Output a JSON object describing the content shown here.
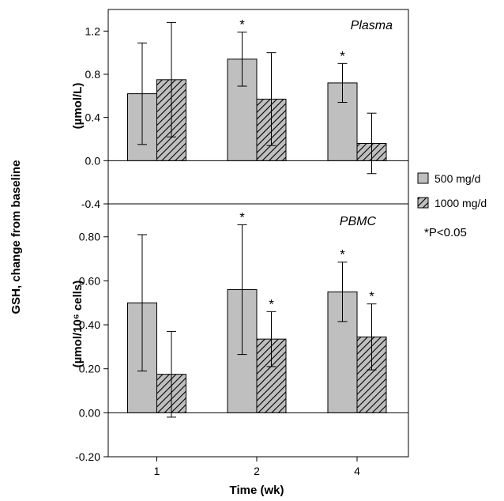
{
  "chart_data": [
    {
      "type": "bar",
      "title": "Plasma",
      "categories": [
        "1",
        "2",
        "4"
      ],
      "ylabel": "(µmol/L)",
      "ylim": [
        -0.4,
        1.4
      ],
      "yticks": [
        "-0.4",
        "0.0",
        "0.4",
        "0.8",
        "1.2"
      ],
      "series": [
        {
          "name": "500 mg/d",
          "values": [
            0.62,
            0.94,
            0.72
          ],
          "error": [
            0.47,
            0.25,
            0.18
          ],
          "significant": [
            false,
            true,
            true
          ]
        },
        {
          "name": "1000 mg/d",
          "values": [
            0.75,
            0.57,
            0.16
          ],
          "error": [
            0.53,
            0.43,
            0.28
          ],
          "significant": [
            false,
            false,
            false
          ]
        }
      ]
    },
    {
      "type": "bar",
      "title": "PBMC",
      "categories": [
        "1",
        "2",
        "4"
      ],
      "ylabel": "(µmol/10⁶ cells)",
      "ylim": [
        -0.2,
        0.95
      ],
      "yticks": [
        "-0.20",
        "0.00",
        "0.20",
        "0.40",
        "0.60",
        "0.80"
      ],
      "series": [
        {
          "name": "500 mg/d",
          "values": [
            0.5,
            0.56,
            0.55
          ],
          "error": [
            0.31,
            0.295,
            0.135
          ],
          "significant": [
            false,
            true,
            true
          ]
        },
        {
          "name": "1000 mg/d",
          "values": [
            0.175,
            0.335,
            0.345
          ],
          "error": [
            0.195,
            0.125,
            0.15
          ],
          "significant": [
            false,
            true,
            true
          ]
        }
      ]
    }
  ],
  "axes": {
    "shared_ylabel": "GSH, change from baseline",
    "xlabel": "Time (wk)",
    "sig_marker": "*"
  },
  "legend": {
    "items": [
      {
        "label": "500 mg/d",
        "fill": "#bfbfbf",
        "pattern": "solid"
      },
      {
        "label": "1000 mg/d",
        "fill": "#bfbfbf",
        "pattern": "hatch"
      }
    ],
    "note": "*P<0.05"
  },
  "colors": {
    "bar": "#bfbfbf",
    "hatch_line": "#000000",
    "axis": "#000000"
  }
}
